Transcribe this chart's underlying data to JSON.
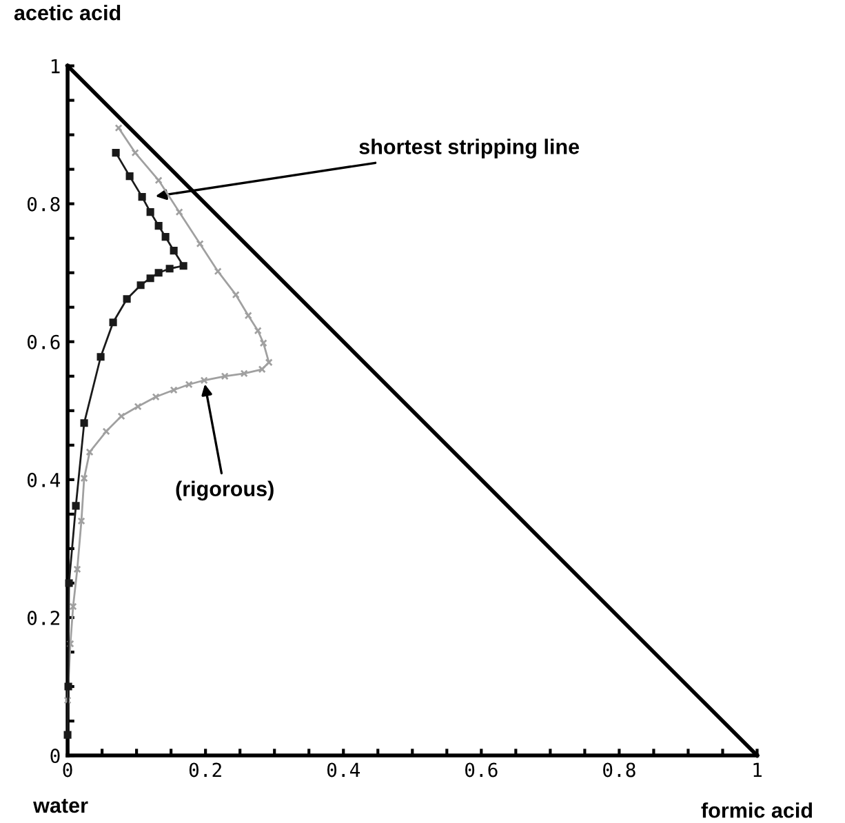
{
  "chart_data": {
    "type": "line",
    "xlabel": "formic acid",
    "ylabel": "acetic acid",
    "xlim": [
      0,
      1
    ],
    "ylim": [
      0,
      1
    ],
    "xticks": [
      0,
      {
        "value": 0.05,
        "label": null
      },
      {
        "value": 0.1,
        "label": null
      },
      {
        "value": 0.15,
        "label": null
      },
      0.2,
      {
        "value": 0.25,
        "label": null
      },
      {
        "value": 0.3,
        "label": null
      },
      {
        "value": 0.35,
        "label": null
      },
      0.4,
      {
        "value": 0.45,
        "label": null
      },
      {
        "value": 0.5,
        "label": null
      },
      {
        "value": 0.55,
        "label": null
      },
      0.6,
      {
        "value": 0.65,
        "label": null
      },
      {
        "value": 0.7,
        "label": null
      },
      {
        "value": 0.75,
        "label": null
      },
      0.8,
      {
        "value": 0.85,
        "label": null
      },
      {
        "value": 0.9,
        "label": null
      },
      {
        "value": 0.95,
        "label": null
      },
      1
    ],
    "yticks": [
      0,
      {
        "value": 0.05,
        "label": null
      },
      {
        "value": 0.1,
        "label": null
      },
      {
        "value": 0.15,
        "label": null
      },
      0.2,
      {
        "value": 0.25,
        "label": null
      },
      {
        "value": 0.3,
        "label": null
      },
      {
        "value": 0.35,
        "label": null
      },
      0.4,
      {
        "value": 0.45,
        "label": null
      },
      {
        "value": 0.5,
        "label": null
      },
      {
        "value": 0.55,
        "label": null
      },
      0.6,
      {
        "value": 0.65,
        "label": null
      },
      {
        "value": 0.7,
        "label": null
      },
      {
        "value": 0.75,
        "label": null
      },
      0.8,
      {
        "value": 0.85,
        "label": null
      },
      {
        "value": 0.9,
        "label": null
      },
      {
        "value": 0.95,
        "label": null
      },
      1
    ],
    "grid": false,
    "legend": false,
    "series": [
      {
        "color": "#000000",
        "marker": "none",
        "x": [
          0,
          1
        ],
        "values": [
          1,
          0
        ]
      },
      {
        "color": "#a0a0a0",
        "marker": "cross",
        "x": [
          0.074,
          0.098,
          0.132,
          0.162,
          0.192,
          0.218,
          0.244,
          0.262,
          0.276,
          0.284,
          0.292,
          0.282,
          0.256,
          0.228,
          0.198,
          0.176,
          0.154,
          0.128,
          0.102,
          0.078,
          0.056,
          0.032,
          0.024,
          0.02,
          0.014,
          0.008,
          0.004,
          0
        ],
        "values": [
          0.91,
          0.874,
          0.834,
          0.788,
          0.742,
          0.702,
          0.668,
          0.638,
          0.616,
          0.598,
          0.57,
          0.56,
          0.554,
          0.55,
          0.544,
          0.538,
          0.53,
          0.52,
          0.506,
          0.492,
          0.47,
          0.44,
          0.402,
          0.34,
          0.27,
          0.216,
          0.162,
          0.08
        ]
      },
      {
        "color": "#1a1a1a",
        "marker": "square",
        "x": [
          0.07,
          0.09,
          0.108,
          0.12,
          0.132,
          0.142,
          0.154,
          0.168,
          0.148,
          0.132,
          0.12,
          0.106,
          0.086,
          0.066,
          0.048,
          0.024,
          0.012,
          0.002,
          0.001,
          0
        ],
        "values": [
          0.874,
          0.84,
          0.81,
          0.788,
          0.768,
          0.752,
          0.732,
          0.71,
          0.706,
          0.7,
          0.692,
          0.682,
          0.662,
          0.628,
          0.578,
          0.482,
          0.362,
          0.25,
          0.1,
          0.03
        ]
      }
    ],
    "annotations": [
      {
        "text": "shortest stripping line",
        "x": 0.122,
        "y": 0.81
      },
      {
        "text": "(rigorous)",
        "x": 0.198,
        "y": 0.544
      },
      "water"
    ]
  }
}
